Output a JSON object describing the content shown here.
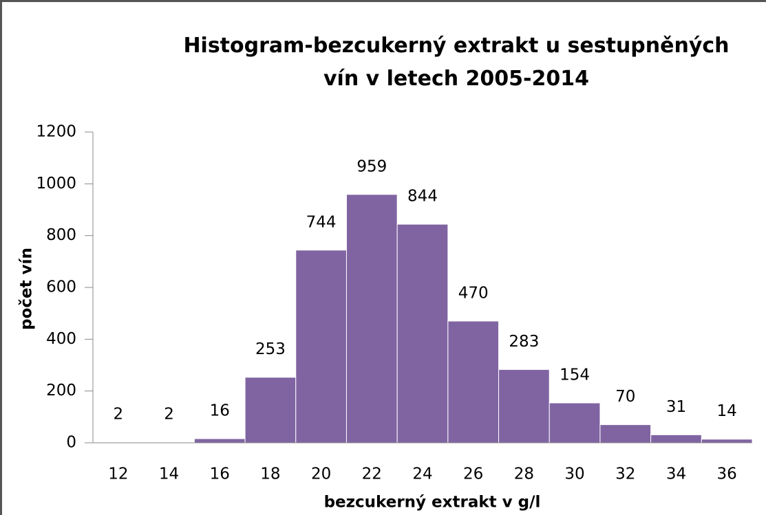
{
  "chart_data": {
    "type": "bar",
    "title": "Histogram-bezcukerný extrakt u sestupněných vín v letech 2005-2014",
    "x_label": "bezcukerný extrakt v g/l",
    "y_label": "počet vín",
    "categories": [
      "12",
      "14",
      "16",
      "18",
      "20",
      "22",
      "24",
      "26",
      "28",
      "30",
      "32",
      "34",
      "36"
    ],
    "values": [
      2,
      2,
      16,
      253,
      744,
      959,
      844,
      470,
      283,
      154,
      70,
      31,
      14
    ],
    "color": "#8064a2",
    "ylim": [
      0,
      1200
    ],
    "yticks": [
      0,
      200,
      400,
      600,
      800,
      1000,
      1200
    ],
    "grid": false
  }
}
